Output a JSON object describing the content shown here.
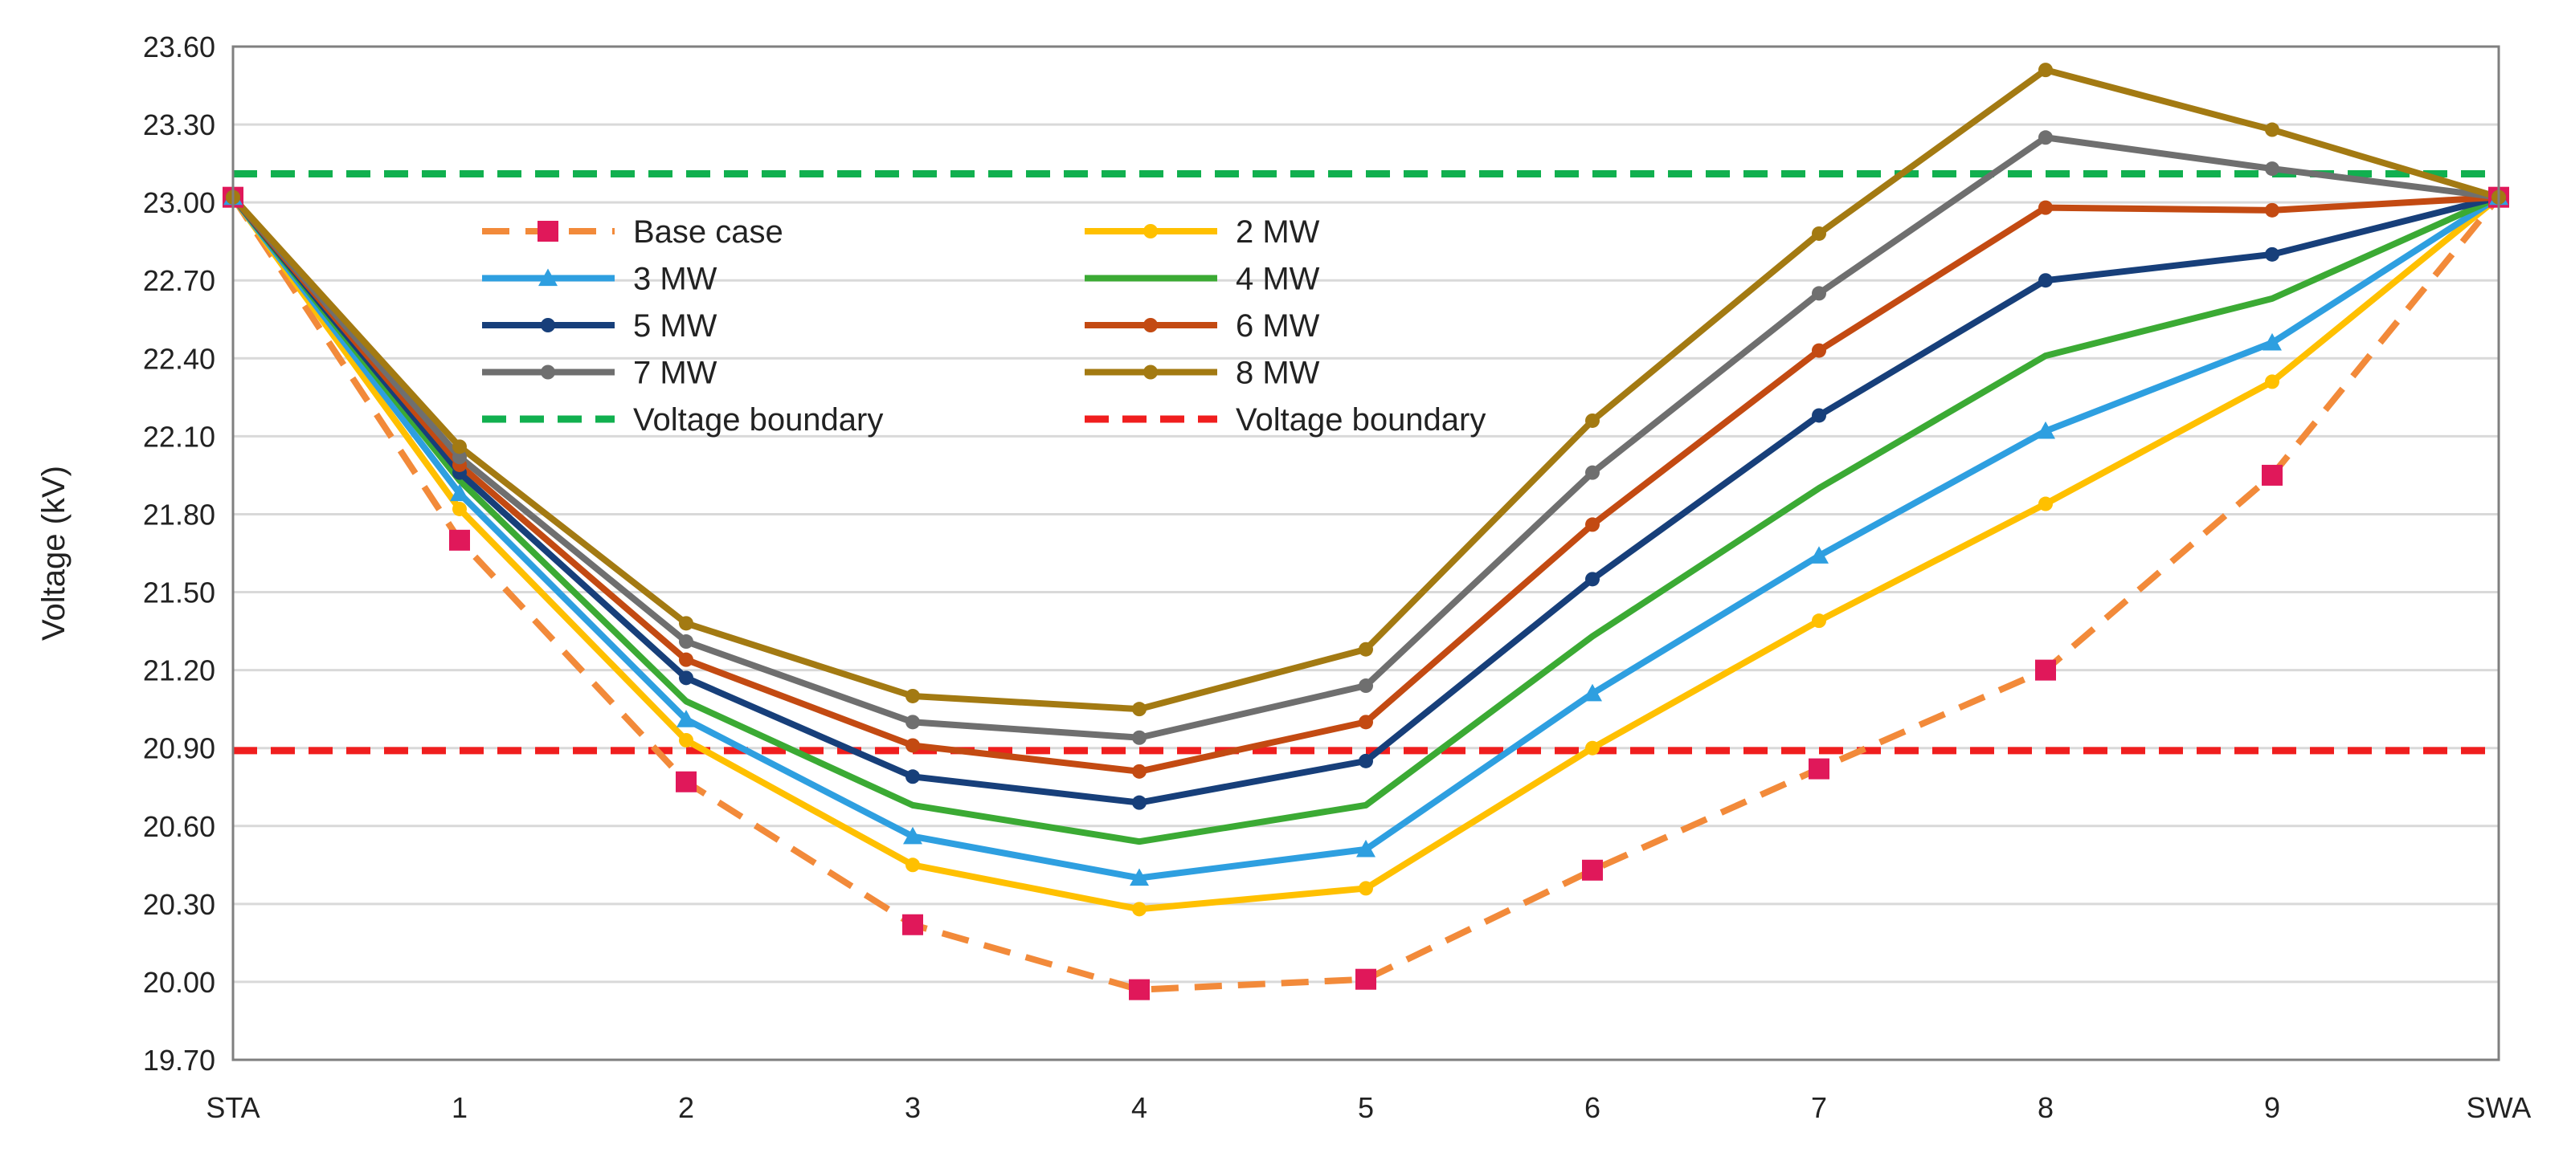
{
  "chart_data": {
    "type": "line",
    "title": "",
    "xlabel": "",
    "ylabel": "Voltage (kV)",
    "ylim": [
      19.7,
      23.6
    ],
    "yticks": [
      19.7,
      20.0,
      20.3,
      20.6,
      20.9,
      21.2,
      21.5,
      21.8,
      22.1,
      22.4,
      22.7,
      23.0,
      23.3,
      23.6
    ],
    "ytick_labels": [
      "19.70",
      "20.00",
      "20.30",
      "20.60",
      "20.90",
      "21.20",
      "21.50",
      "21.80",
      "22.10",
      "22.40",
      "22.70",
      "23.00",
      "23.30",
      "23.60"
    ],
    "categories": [
      "STA",
      "1",
      "2",
      "3",
      "4",
      "5",
      "6",
      "7",
      "8",
      "9",
      "SWA"
    ],
    "grid": true,
    "legend_position": "upper-left inside",
    "series": [
      {
        "name": "Base case",
        "color": "#F28A3A",
        "dash": "dashed",
        "marker": "square",
        "marker_color": "#E0185A",
        "values": [
          23.02,
          21.7,
          20.77,
          20.22,
          19.97,
          20.01,
          20.43,
          20.82,
          21.2,
          21.95,
          23.02
        ]
      },
      {
        "name": "2 MW",
        "color": "#FFC000",
        "dash": "solid",
        "marker": "circle",
        "marker_color": "#FFC000",
        "values": [
          23.02,
          21.82,
          20.93,
          20.45,
          20.28,
          20.36,
          20.9,
          21.39,
          21.84,
          22.31,
          23.02
        ]
      },
      {
        "name": "3 MW",
        "color": "#2E9FE0",
        "dash": "solid",
        "marker": "triangle",
        "marker_color": "#2E9FE0",
        "values": [
          23.02,
          21.88,
          21.01,
          20.56,
          20.4,
          20.51,
          21.11,
          21.64,
          22.12,
          22.46,
          23.02
        ]
      },
      {
        "name": "4 MW",
        "color": "#3BAA34",
        "dash": "solid",
        "marker": "none",
        "marker_color": "#3BAA34",
        "values": [
          23.02,
          21.93,
          21.08,
          20.68,
          20.54,
          20.68,
          21.33,
          21.9,
          22.41,
          22.63,
          23.02
        ]
      },
      {
        "name": "5 MW",
        "color": "#173F7A",
        "dash": "solid",
        "marker": "circle",
        "marker_color": "#173F7A",
        "values": [
          23.02,
          21.96,
          21.17,
          20.79,
          20.69,
          20.85,
          21.55,
          22.18,
          22.7,
          22.8,
          23.02
        ]
      },
      {
        "name": "6 MW",
        "color": "#C34A12",
        "dash": "solid",
        "marker": "circle",
        "marker_color": "#C34A12",
        "values": [
          23.02,
          21.99,
          21.24,
          20.91,
          20.81,
          21.0,
          21.76,
          22.43,
          22.98,
          22.97,
          23.02
        ]
      },
      {
        "name": "7 MW",
        "color": "#6F6F6F",
        "dash": "solid",
        "marker": "circle",
        "marker_color": "#6F6F6F",
        "values": [
          23.02,
          22.02,
          21.31,
          21.0,
          20.94,
          21.14,
          21.96,
          22.65,
          23.25,
          23.13,
          23.02
        ]
      },
      {
        "name": "8 MW",
        "color": "#A37A12",
        "dash": "solid",
        "marker": "circle",
        "marker_color": "#A37A12",
        "values": [
          23.02,
          22.06,
          21.38,
          21.1,
          21.05,
          21.28,
          22.16,
          22.88,
          23.51,
          23.28,
          23.02
        ]
      }
    ],
    "reference_lines": [
      {
        "name": "Voltage boundary",
        "value": 23.11,
        "color": "#11B04F",
        "dash": "dashed"
      },
      {
        "name": "Voltage boundary",
        "value": 20.89,
        "color": "#F01E1E",
        "dash": "dashed"
      }
    ]
  }
}
